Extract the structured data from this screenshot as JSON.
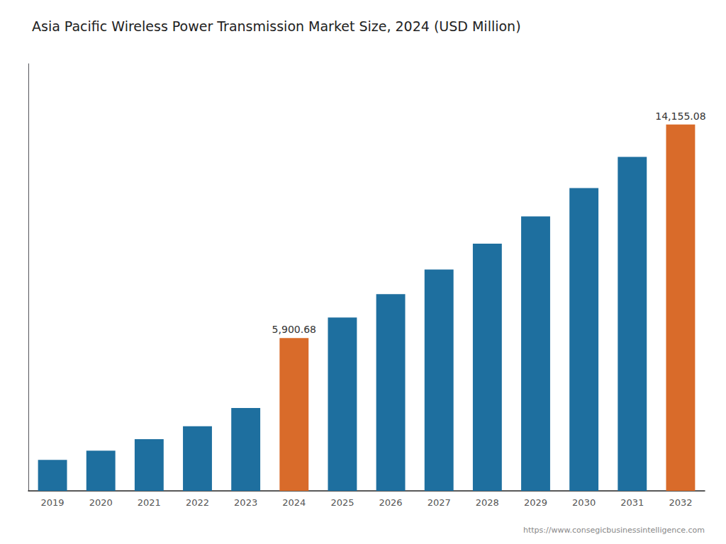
{
  "chart_data": {
    "type": "bar",
    "title": "Asia Pacific Wireless Power Transmission Market Size, 2024 (USD Million)",
    "categories": [
      "2019",
      "2020",
      "2021",
      "2022",
      "2023",
      "2024",
      "2025",
      "2026",
      "2027",
      "2028",
      "2029",
      "2030",
      "2031",
      "2032"
    ],
    "values": [
      1200,
      1550,
      2000,
      2500,
      3200,
      5900.68,
      6700,
      7600,
      8550,
      9550,
      10600,
      11700,
      12900,
      14155.08
    ],
    "colors": [
      "#1e6f9f",
      "#1e6f9f",
      "#1e6f9f",
      "#1e6f9f",
      "#1e6f9f",
      "#d96b2a",
      "#1e6f9f",
      "#1e6f9f",
      "#1e6f9f",
      "#1e6f9f",
      "#1e6f9f",
      "#1e6f9f",
      "#1e6f9f",
      "#d96b2a"
    ],
    "data_labels": true,
    "value_labels": [
      null,
      null,
      null,
      null,
      null,
      "5,900.68",
      null,
      null,
      null,
      null,
      null,
      null,
      null,
      "14,155.08"
    ],
    "ylim": [
      0,
      16500
    ],
    "tick_labels": "x",
    "grid": false,
    "annotations": [
      "https://www.consegicbusinessintelligence.com"
    ]
  }
}
